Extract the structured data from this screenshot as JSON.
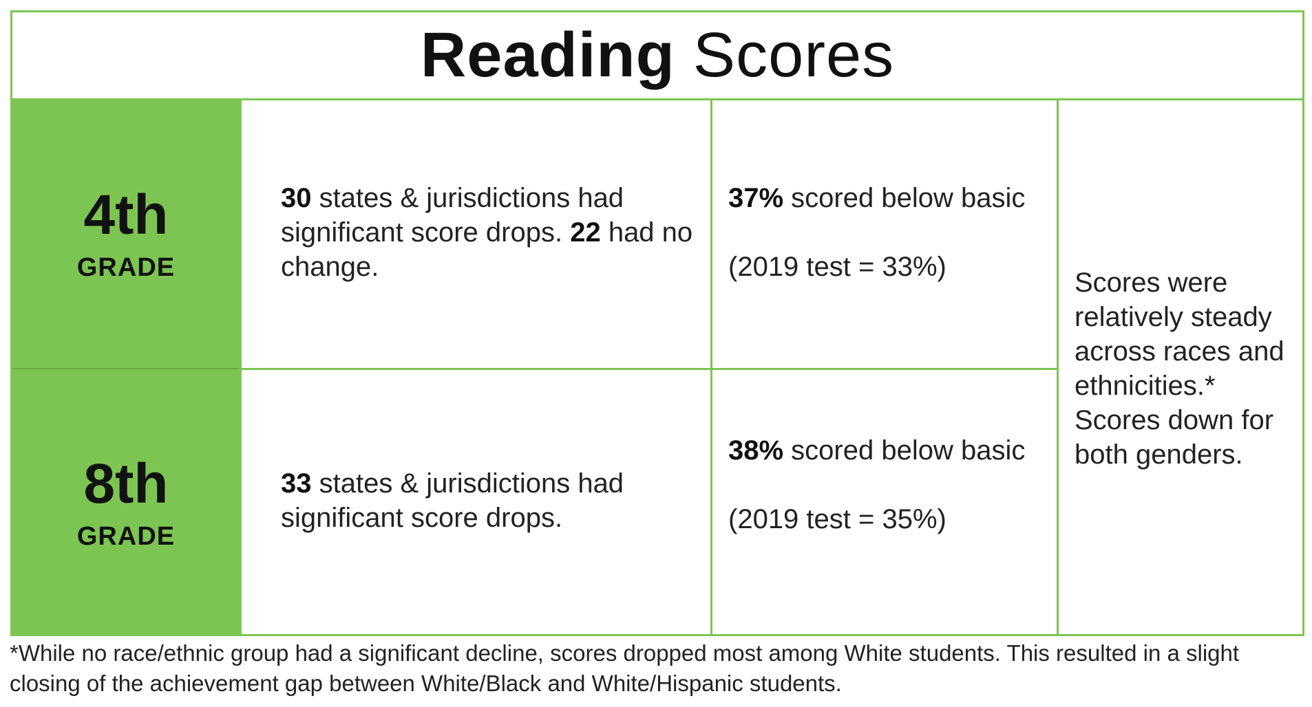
{
  "title": {
    "bold": "Reading",
    "light": "Scores"
  },
  "accent_color": "#7dc552",
  "grades": [
    {
      "number": "4th",
      "label": "GRADE",
      "states": {
        "count": "30",
        "text": " states & jurisdictions had significant score drops. ",
        "count2": "22",
        "text2": " had no change."
      },
      "below_basic": {
        "percent": "37%",
        "text": " scored below basic",
        "prior": "(2019 test = 33%)"
      }
    },
    {
      "number": "8th",
      "label": "GRADE",
      "states": {
        "count": "33",
        "text": " states & jurisdictions had significant score drops.",
        "count2": "",
        "text2": ""
      },
      "below_basic": {
        "percent": "38%",
        "text": " scored below basic",
        "prior": "(2019 test = 35%)"
      }
    }
  ],
  "summary": "Scores were relatively steady across races and ethnicities.* Scores down for both genders.",
  "footnote": "*While no race/ethnic group had a significant decline, scores dropped most among White students. This resulted in a slight closing of the achievement gap between White/Black and White/Hispanic students."
}
